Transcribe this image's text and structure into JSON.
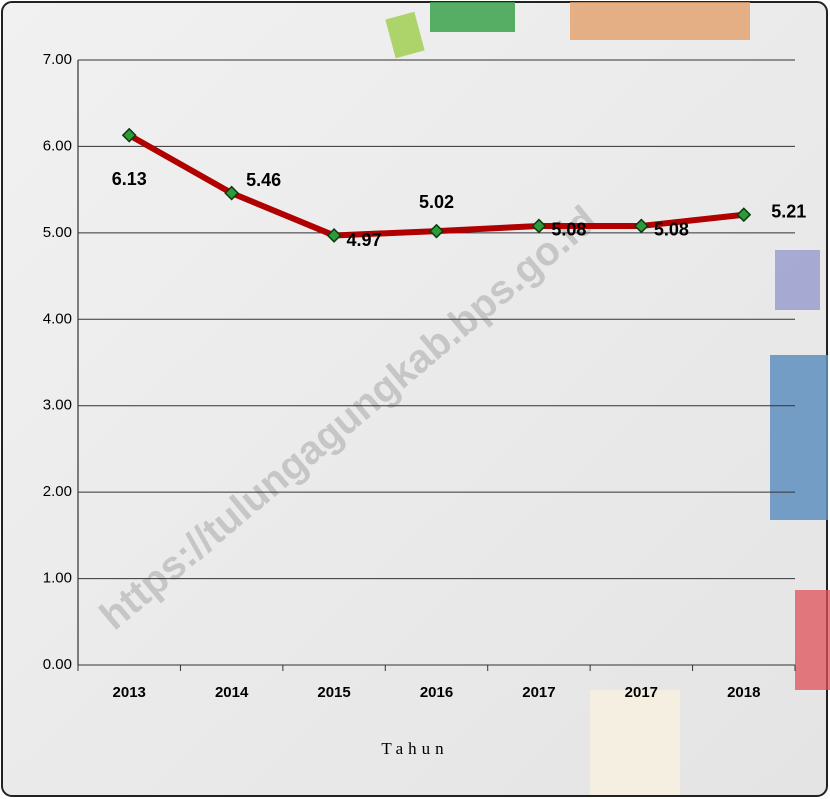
{
  "chart_data": {
    "type": "line",
    "categories": [
      "2013",
      "2014",
      "2015",
      "2016",
      "2017",
      "2017",
      "2018"
    ],
    "series": [
      {
        "color": "#b00000",
        "values": [
          6.13,
          5.46,
          4.97,
          5.02,
          5.08,
          5.08,
          5.21
        ]
      }
    ],
    "ylim": [
      0,
      7
    ],
    "yticks": [
      {
        "value": 0,
        "label": "0.00"
      },
      {
        "value": 1,
        "label": "1.00"
      },
      {
        "value": 2,
        "label": "2.00"
      },
      {
        "value": 3,
        "label": "3.00"
      },
      {
        "value": 4,
        "label": "4.00"
      },
      {
        "value": 5,
        "label": "5.00"
      },
      {
        "value": 6,
        "label": "6.00"
      },
      {
        "value": 7,
        "label": "7.00"
      }
    ],
    "grid": true,
    "xlabel": "Tahun",
    "watermark": "https://tulungagungkab.bps.go.id"
  }
}
